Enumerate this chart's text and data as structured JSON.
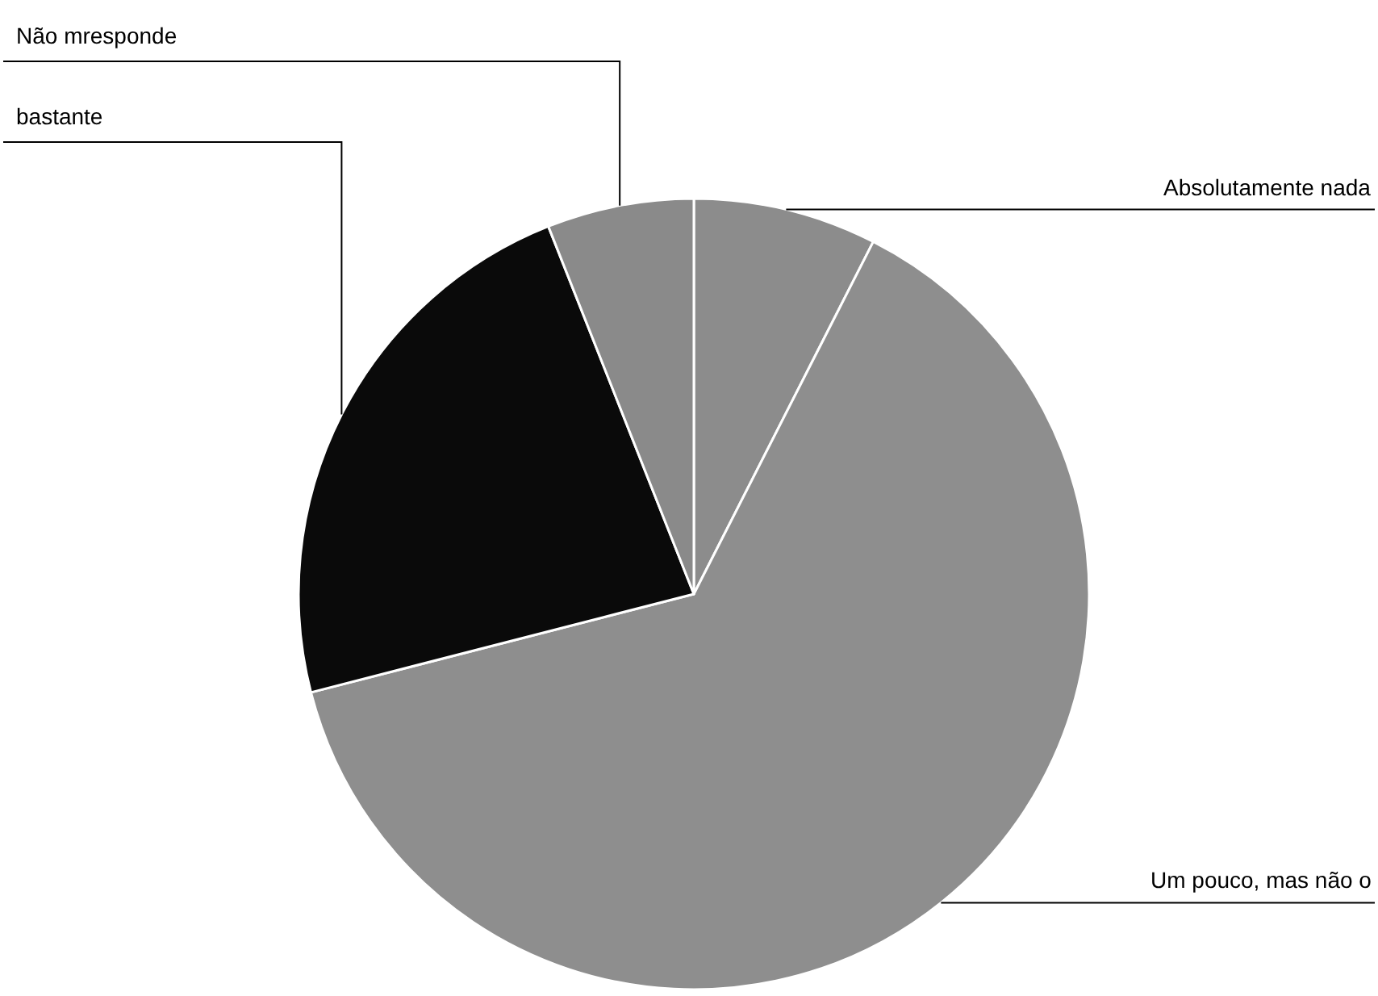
{
  "chart_data": {
    "type": "pie",
    "categories": [
      "Absolutamente nada",
      "Um pouco, mas não o",
      "bastante",
      "Não mresponde"
    ],
    "values": [
      7.5,
      63.5,
      23,
      6
    ],
    "colors": [
      "#8c8c8c",
      "#8e8e8e",
      "#0a0a0a",
      "#8a8a8a"
    ],
    "legend": false
  }
}
